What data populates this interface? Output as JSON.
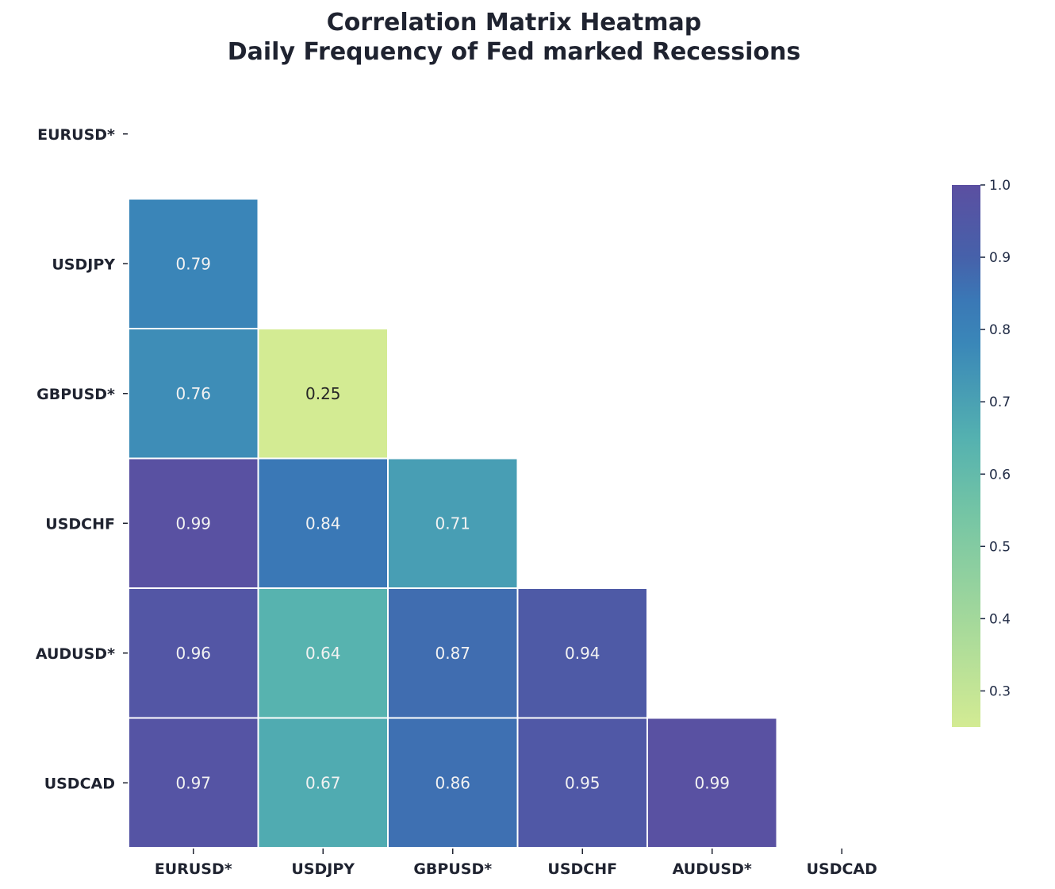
{
  "chart_data": {
    "type": "heatmap",
    "title": "Correlation Matrix Heatmap",
    "subtitle": "Daily Frequency of Fed marked Recessions",
    "xlabel": "",
    "ylabel": "",
    "x_labels": [
      "EURUSD*",
      "USDJPY",
      "GBPUSD*",
      "USDCHF",
      "AUDUSD*",
      "USDCAD"
    ],
    "y_labels": [
      "EURUSD*",
      "USDJPY",
      "GBPUSD*",
      "USDCHF",
      "AUDUSD*",
      "USDCAD"
    ],
    "mask": "upper-triangle-including-diagonal",
    "cells": [
      {
        "row": 1,
        "col": 0,
        "value": 0.79,
        "label": "0.79"
      },
      {
        "row": 2,
        "col": 0,
        "value": 0.76,
        "label": "0.76"
      },
      {
        "row": 2,
        "col": 1,
        "value": 0.25,
        "label": "0.25"
      },
      {
        "row": 3,
        "col": 0,
        "value": 0.99,
        "label": "0.99"
      },
      {
        "row": 3,
        "col": 1,
        "value": 0.84,
        "label": "0.84"
      },
      {
        "row": 3,
        "col": 2,
        "value": 0.71,
        "label": "0.71"
      },
      {
        "row": 4,
        "col": 0,
        "value": 0.96,
        "label": "0.96"
      },
      {
        "row": 4,
        "col": 1,
        "value": 0.64,
        "label": "0.64"
      },
      {
        "row": 4,
        "col": 2,
        "value": 0.87,
        "label": "0.87"
      },
      {
        "row": 4,
        "col": 3,
        "value": 0.94,
        "label": "0.94"
      },
      {
        "row": 5,
        "col": 0,
        "value": 0.97,
        "label": "0.97"
      },
      {
        "row": 5,
        "col": 1,
        "value": 0.67,
        "label": "0.67"
      },
      {
        "row": 5,
        "col": 2,
        "value": 0.86,
        "label": "0.86"
      },
      {
        "row": 5,
        "col": 3,
        "value": 0.95,
        "label": "0.95"
      },
      {
        "row": 5,
        "col": 4,
        "value": 0.99,
        "label": "0.99"
      }
    ],
    "colorbar": {
      "range": [
        0.25,
        1.0
      ],
      "ticks": [
        0.3,
        0.4,
        0.5,
        0.6,
        0.7,
        0.8,
        0.9,
        1.0
      ],
      "tick_labels": [
        "0.3",
        "0.4",
        "0.5",
        "0.6",
        "0.7",
        "0.8",
        "0.9",
        "1.0"
      ],
      "placement": "right",
      "colormap": [
        {
          "v": 0.25,
          "color": "#d3eb93"
        },
        {
          "v": 0.4,
          "color": "#a3d89b"
        },
        {
          "v": 0.55,
          "color": "#73c4a5"
        },
        {
          "v": 0.65,
          "color": "#54b1b0"
        },
        {
          "v": 0.78,
          "color": "#3a87b8"
        },
        {
          "v": 0.84,
          "color": "#3a78b6"
        },
        {
          "v": 0.9,
          "color": "#4661aa"
        },
        {
          "v": 1.0,
          "color": "#5b4fa1"
        }
      ]
    },
    "grid": false,
    "cell_text_colors": {
      "light": "#f2f2f2",
      "dark": "#262626"
    }
  }
}
